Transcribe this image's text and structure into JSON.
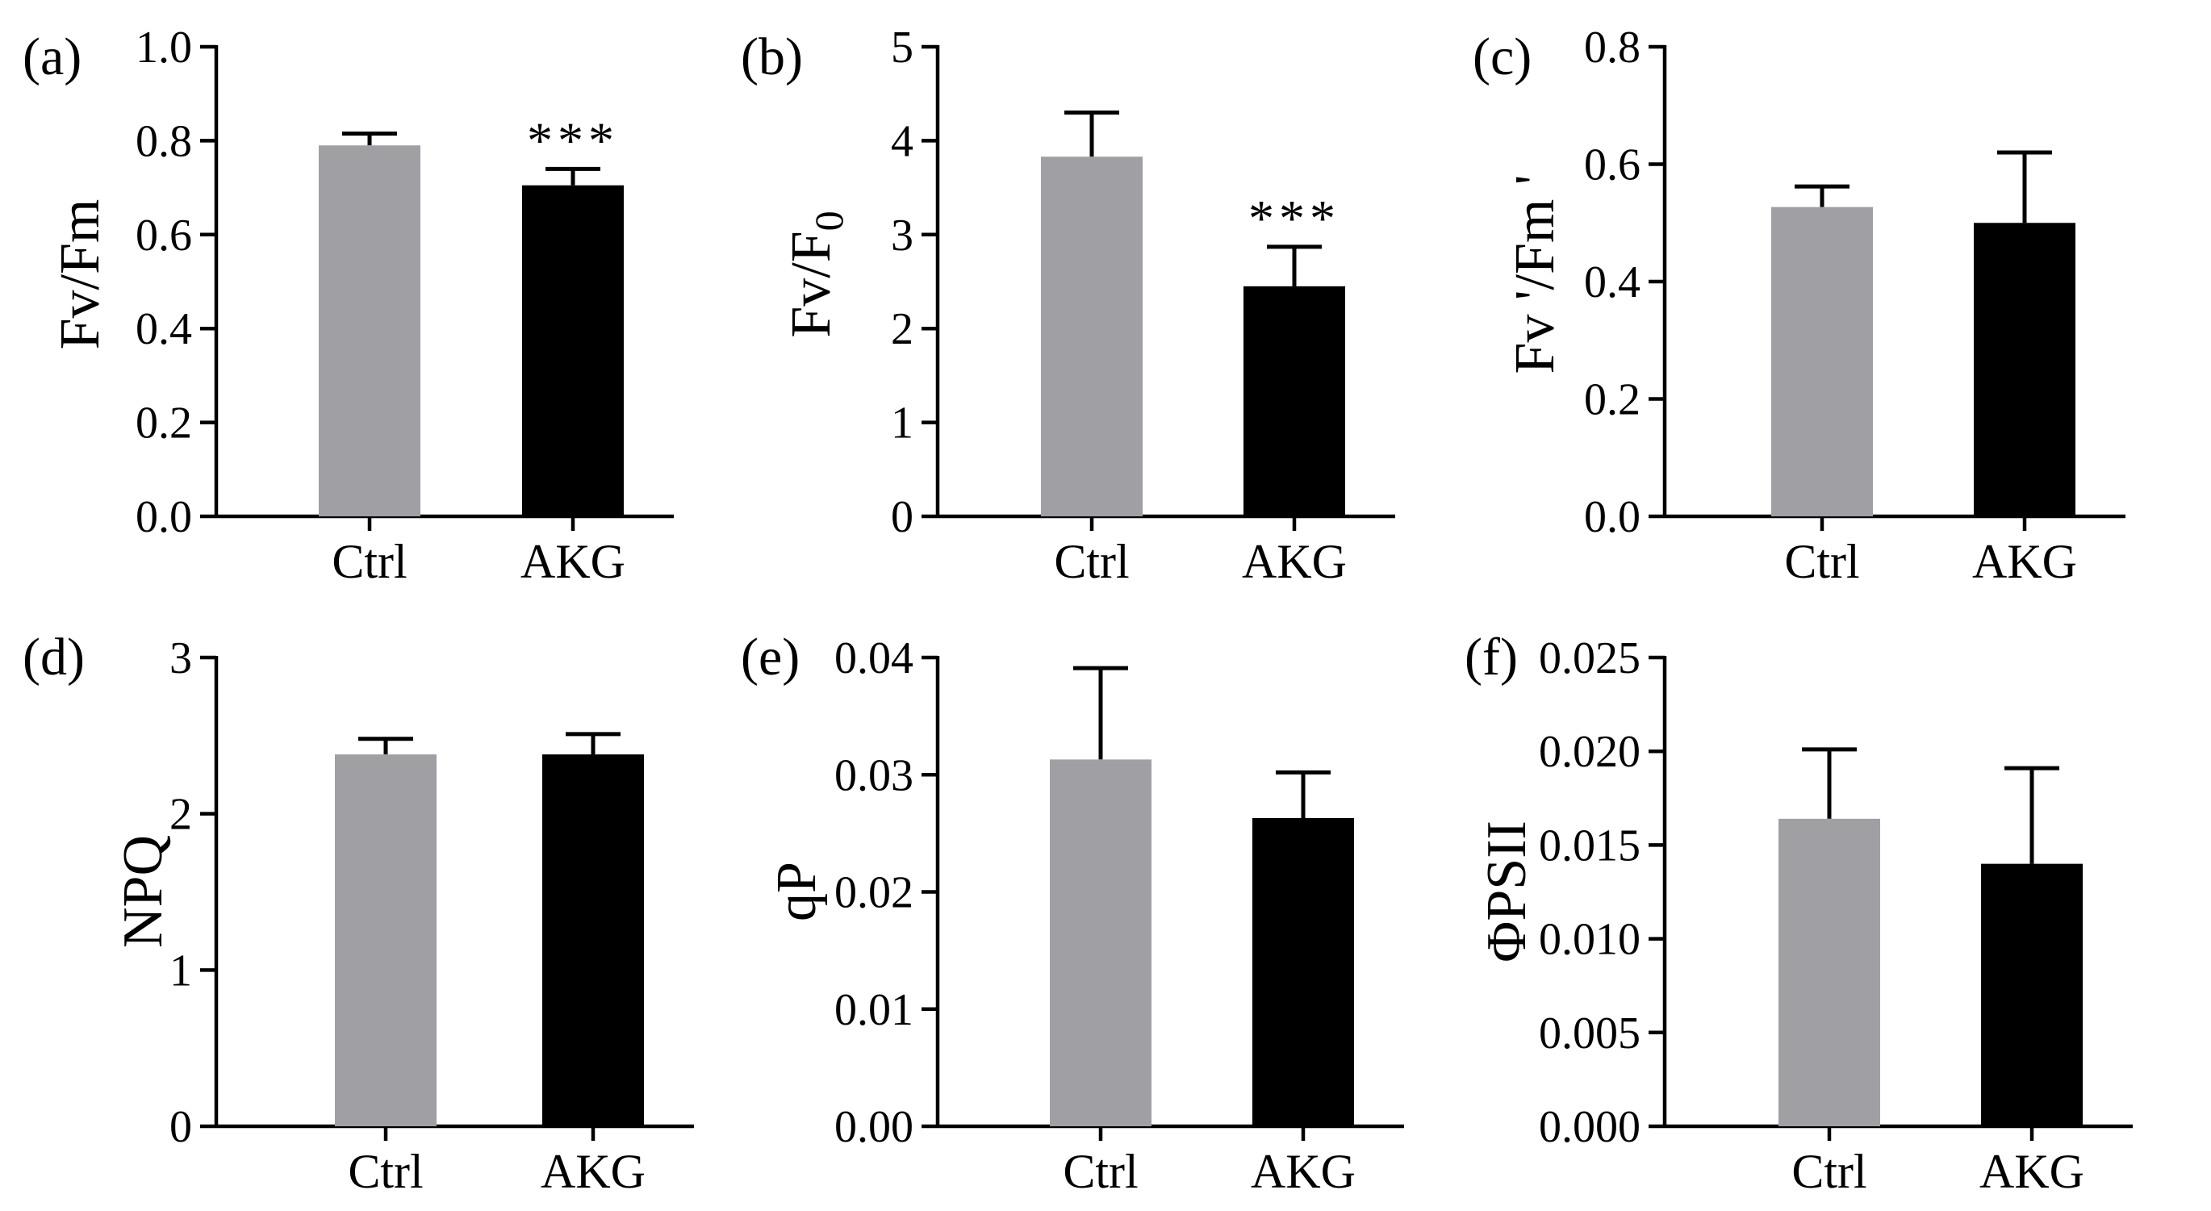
{
  "colors": {
    "ctrl": "#a09fa4",
    "akg": "#000000"
  },
  "chart_data": [
    {
      "type": "bar",
      "panel_label": "(a)",
      "title": "",
      "ylabel": "Fv/Fm",
      "ylabel_subscript": "",
      "ylabel_suffix": "",
      "xlabel": "",
      "categories": [
        "Ctrl",
        "AKG"
      ],
      "values": [
        0.79,
        0.705
      ],
      "errors": [
        0.025,
        0.035
      ],
      "significance": [
        "",
        "***"
      ],
      "ylim": [
        0,
        1.0
      ],
      "yticks": [
        "0.0",
        "0.2",
        "0.4",
        "0.6",
        "0.8",
        "1.0"
      ]
    },
    {
      "type": "bar",
      "panel_label": "(b)",
      "title": "",
      "ylabel": "Fv/F",
      "ylabel_subscript": "0",
      "ylabel_suffix": "",
      "xlabel": "",
      "categories": [
        "Ctrl",
        "AKG"
      ],
      "values": [
        3.83,
        2.45
      ],
      "errors": [
        0.47,
        0.42
      ],
      "significance": [
        "",
        "***"
      ],
      "ylim": [
        0,
        5
      ],
      "yticks": [
        "0",
        "1",
        "2",
        "3",
        "4",
        "5"
      ]
    },
    {
      "type": "bar",
      "panel_label": "(c)",
      "title": "",
      "ylabel": "Fv '/Fm '",
      "ylabel_subscript": "",
      "ylabel_suffix": "",
      "xlabel": "",
      "categories": [
        "Ctrl",
        "AKG"
      ],
      "values": [
        0.527,
        0.5
      ],
      "errors": [
        0.035,
        0.12
      ],
      "significance": [
        "",
        ""
      ],
      "ylim": [
        0,
        0.8
      ],
      "yticks": [
        "0.0",
        "0.2",
        "0.4",
        "0.6",
        "0.8"
      ]
    },
    {
      "type": "bar",
      "panel_label": "(d)",
      "title": "",
      "ylabel": "NPQ",
      "ylabel_subscript": "",
      "ylabel_suffix": "",
      "xlabel": "",
      "categories": [
        "Ctrl",
        "AKG"
      ],
      "values": [
        2.38,
        2.38
      ],
      "errors": [
        0.1,
        0.13
      ],
      "significance": [
        "",
        ""
      ],
      "ylim": [
        0,
        3
      ],
      "yticks": [
        "0",
        "1",
        "2",
        "3"
      ]
    },
    {
      "type": "bar",
      "panel_label": "(e)",
      "title": "",
      "ylabel": "qP",
      "ylabel_subscript": "",
      "ylabel_suffix": "",
      "xlabel": "",
      "categories": [
        "Ctrl",
        "AKG"
      ],
      "values": [
        0.0313,
        0.0263
      ],
      "errors": [
        0.0078,
        0.0039
      ],
      "significance": [
        "",
        ""
      ],
      "ylim": [
        0,
        0.04
      ],
      "yticks": [
        "0.00",
        "0.01",
        "0.02",
        "0.03",
        "0.04"
      ]
    },
    {
      "type": "bar",
      "panel_label": "(f)",
      "title": "",
      "ylabel": "ΦPSII",
      "ylabel_subscript": "",
      "ylabel_suffix": "",
      "xlabel": "",
      "categories": [
        "Ctrl",
        "AKG"
      ],
      "values": [
        0.0164,
        0.014
      ],
      "errors": [
        0.0037,
        0.0051
      ],
      "significance": [
        "",
        ""
      ],
      "ylim": [
        0,
        0.025
      ],
      "yticks": [
        "0.000",
        "0.005",
        "0.010",
        "0.015",
        "0.020",
        "0.025"
      ]
    }
  ]
}
